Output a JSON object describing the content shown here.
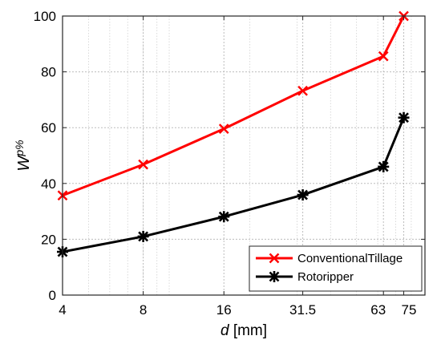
{
  "chart_data": {
    "type": "line",
    "xscale": "log",
    "xlabel_italic": "d",
    "xlabel_unit": "[mm]",
    "ylabel_base": "W",
    "ylabel_sup": "p%",
    "xlim": [
      4,
      90
    ],
    "ylim": [
      0,
      100
    ],
    "x_ticks": [
      4,
      8,
      16,
      31.5,
      63,
      75
    ],
    "x_tick_labels": [
      "4",
      "8",
      "16",
      "31.5",
      "63",
      "75"
    ],
    "y_ticks": [
      0,
      20,
      40,
      60,
      80,
      100
    ],
    "y_tick_labels": [
      "0",
      "20",
      "40",
      "60",
      "80",
      "100"
    ],
    "grid": true,
    "legend_position": "bottom-right",
    "series": [
      {
        "name": "ConventionalTillage",
        "color": "#ff0000",
        "marker": "x",
        "x": [
          4,
          8,
          16,
          31.5,
          63,
          75
        ],
        "y": [
          35.7,
          46.8,
          59.6,
          73.2,
          85.6,
          100
        ]
      },
      {
        "name": "Rotoripper",
        "color": "#000000",
        "marker": "asterisk",
        "x": [
          4,
          8,
          16,
          31.5,
          63,
          75
        ],
        "y": [
          15.5,
          21.0,
          28.1,
          35.9,
          46.0,
          63.6
        ]
      }
    ]
  }
}
